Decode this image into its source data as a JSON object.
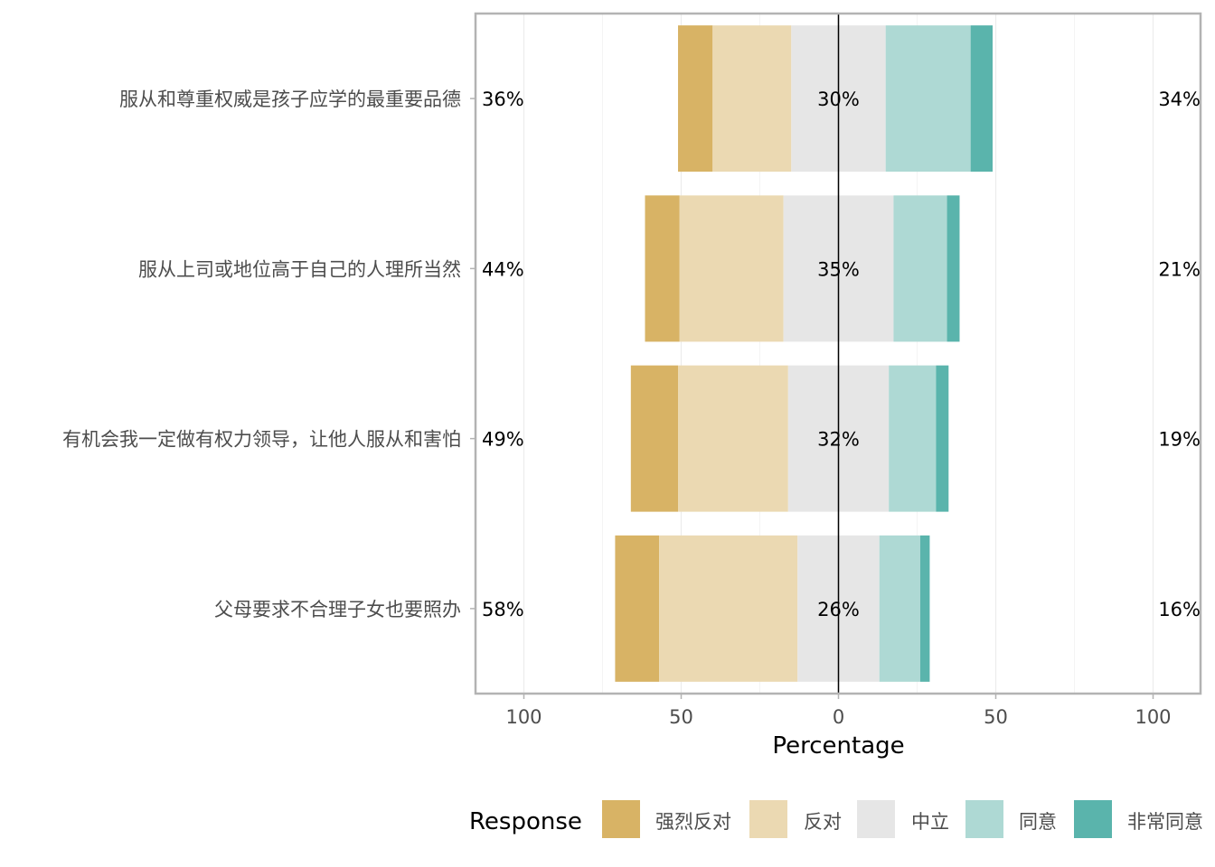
{
  "chart_data": {
    "type": "bar",
    "orientation": "horizontal",
    "stacked": "diverging",
    "xlabel": "Percentage",
    "xticks": [
      {
        "value": -100,
        "label": "100"
      },
      {
        "value": -50,
        "label": "50"
      },
      {
        "value": 0,
        "label": "0"
      },
      {
        "value": 50,
        "label": "50"
      },
      {
        "value": 100,
        "label": "100"
      }
    ],
    "xlim": [
      -115,
      115
    ],
    "grid": true,
    "legend": {
      "title": "Response",
      "position": "bottom",
      "items": [
        {
          "name": "强烈反对",
          "color": "#D8B365"
        },
        {
          "name": "反对",
          "color": "#EBD9B2"
        },
        {
          "name": "中立",
          "color": "#E6E6E6"
        },
        {
          "name": "同意",
          "color": "#AED9D4"
        },
        {
          "name": "非常同意",
          "color": "#5AB4AC"
        }
      ]
    },
    "categories": [
      "服从和尊重权威是孩子应学的最重要品德",
      "服从上司或地位高于自己的人理所当然",
      "有机会我一定做有权力领导，让他人服从和害怕",
      "父母要求不合理子女也要照办"
    ],
    "series": [
      {
        "name": "强烈反对",
        "values": [
          11,
          11,
          15,
          14
        ]
      },
      {
        "name": "反对",
        "values": [
          25,
          33,
          35,
          44
        ]
      },
      {
        "name": "中立",
        "values": [
          30,
          35,
          32,
          26
        ]
      },
      {
        "name": "同意",
        "values": [
          27,
          17,
          15,
          13
        ]
      },
      {
        "name": "非常同意",
        "values": [
          7,
          4,
          4,
          3
        ]
      }
    ],
    "left_labels": [
      "36%",
      "44%",
      "49%",
      "58%"
    ],
    "center_labels": [
      "30%",
      "35%",
      "32%",
      "26%"
    ],
    "right_labels": [
      "34%",
      "21%",
      "19%",
      "16%"
    ]
  }
}
